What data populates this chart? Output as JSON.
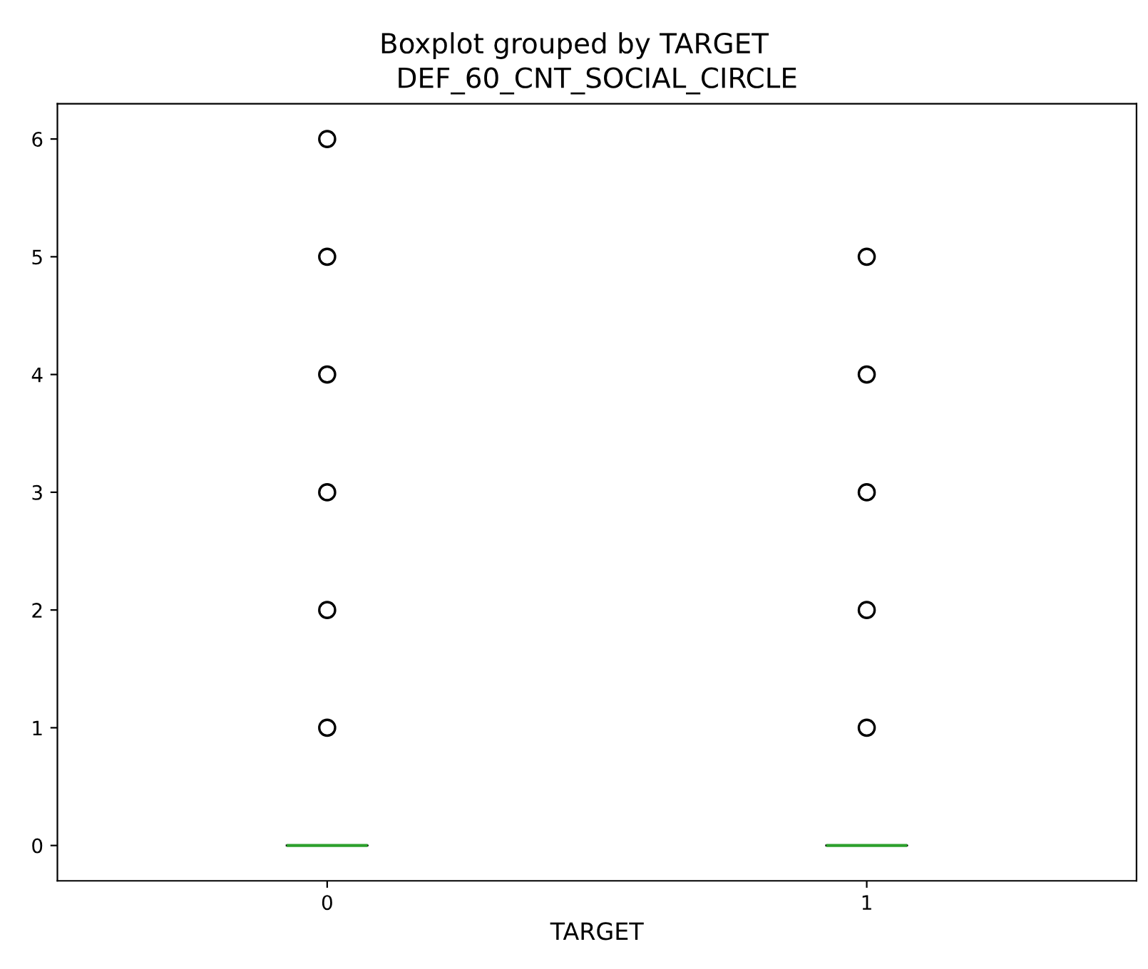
{
  "chart_data": {
    "type": "box",
    "title": "Boxplot grouped by TARGET",
    "subtitle": "DEF_60_CNT_SOCIAL_CIRCLE",
    "xlabel": "TARGET",
    "categories": [
      "0",
      "1"
    ],
    "boxes": [
      {
        "low": 0,
        "q1": 0,
        "median": 0,
        "q3": 0,
        "high": 0,
        "outliers": [
          1,
          2,
          3,
          4,
          5,
          6
        ]
      },
      {
        "low": 0,
        "q1": 0,
        "median": 0,
        "q3": 0,
        "high": 0,
        "outliers": [
          1,
          2,
          3,
          4,
          5
        ]
      }
    ],
    "ylim": [
      -0.3,
      6.3
    ],
    "yticks": [
      0,
      1,
      2,
      3,
      4,
      5,
      6
    ],
    "grid": false
  }
}
